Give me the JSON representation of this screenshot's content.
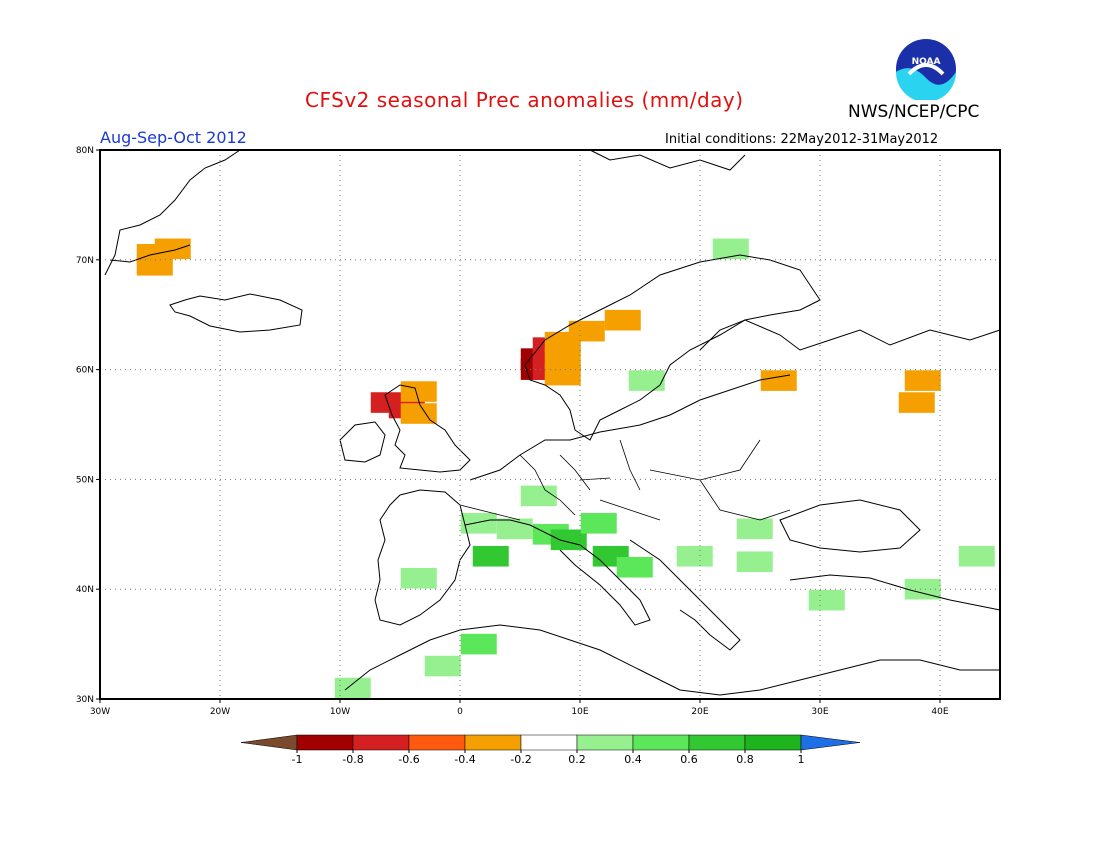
{
  "header": {
    "title": "CFSv2 seasonal Prec anomalies (mm/day)",
    "agency": "NWS/NCEP/CPC",
    "season": "Aug-Sep-Oct 2012",
    "initial_conditions": "Initial conditions: 22May2012-31May2012",
    "logo_text": "NOAA"
  },
  "map": {
    "lon_labels": [
      "30W",
      "20W",
      "10W",
      "0",
      "10E",
      "20E",
      "30E",
      "40E"
    ],
    "lat_labels": [
      "80N",
      "70N",
      "60N",
      "50N",
      "40N",
      "30N"
    ]
  },
  "colorbar": {
    "labels": [
      "-1",
      "-0.8",
      "-0.6",
      "-0.4",
      "-0.2",
      "0.2",
      "0.4",
      "0.6",
      "0.8",
      "1"
    ],
    "colors": [
      "#7a4a2c",
      "#a00000",
      "#d42020",
      "#ff5a10",
      "#f5a000",
      "#ffffff",
      "#96f090",
      "#5ce65a",
      "#32c832",
      "#1eb41e",
      "#1e6ee6"
    ]
  },
  "anomaly_cells": [
    {
      "v": "-0.4",
      "c": "#f5a000",
      "lon": -26,
      "lat": 70.5
    },
    {
      "v": "-0.4",
      "c": "#f5a000",
      "lon": -24.5,
      "lat": 71
    },
    {
      "v": "-0.4",
      "c": "#f5a000",
      "lon": -26,
      "lat": 69.5
    },
    {
      "v": "-0.8",
      "c": "#a00000",
      "lon": 6,
      "lat": 60
    },
    {
      "v": "-0.8",
      "c": "#a00000",
      "lon": 6,
      "lat": 61
    },
    {
      "v": "-0.6",
      "c": "#d42020",
      "lon": 7,
      "lat": 62
    },
    {
      "v": "-0.6",
      "c": "#d42020",
      "lon": 7,
      "lat": 61
    },
    {
      "v": "-0.6",
      "c": "#d42020",
      "lon": 7,
      "lat": 60
    },
    {
      "v": "-0.4",
      "c": "#f5a000",
      "lon": 8,
      "lat": 62.5
    },
    {
      "v": "-0.4",
      "c": "#f5a000",
      "lon": 8,
      "lat": 61
    },
    {
      "v": "-0.4",
      "c": "#f5a000",
      "lon": 8,
      "lat": 59.5
    },
    {
      "v": "-0.4",
      "c": "#f5a000",
      "lon": 10,
      "lat": 63.5
    },
    {
      "v": "-0.4",
      "c": "#f5a000",
      "lon": 13,
      "lat": 64.5
    },
    {
      "v": "-0.6",
      "c": "#d42020",
      "lon": -6.5,
      "lat": 57
    },
    {
      "v": "-0.6",
      "c": "#d42020",
      "lon": -5,
      "lat": 56.5
    },
    {
      "v": "-0.4",
      "c": "#f5a000",
      "lon": -4,
      "lat": 58
    },
    {
      "v": "-0.4",
      "c": "#f5a000",
      "lon": -4,
      "lat": 56
    },
    {
      "v": "-0.4",
      "c": "#f5a000",
      "lon": 26,
      "lat": 59
    },
    {
      "v": "-0.4",
      "c": "#f5a000",
      "lon": 37.5,
      "lat": 57
    },
    {
      "v": "-0.4",
      "c": "#f5a000",
      "lon": 38,
      "lat": 59
    },
    {
      "v": "0.2",
      "c": "#96f090",
      "lon": 6,
      "lat": 48.5
    },
    {
      "v": "0.2",
      "c": "#96f090",
      "lon": 1,
      "lat": 46
    },
    {
      "v": "0.2",
      "c": "#96f090",
      "lon": 4,
      "lat": 45.5
    },
    {
      "v": "0.4",
      "c": "#5ce65a",
      "lon": 7,
      "lat": 45
    },
    {
      "v": "0.6",
      "c": "#32c832",
      "lon": 8.5,
      "lat": 44.5
    },
    {
      "v": "0.4",
      "c": "#5ce65a",
      "lon": 11,
      "lat": 46
    },
    {
      "v": "0.6",
      "c": "#32c832",
      "lon": 12,
      "lat": 43
    },
    {
      "v": "0.4",
      "c": "#5ce65a",
      "lon": 14,
      "lat": 42
    },
    {
      "v": "0.2",
      "c": "#96f090",
      "lon": 19,
      "lat": 43
    },
    {
      "v": "0.2",
      "c": "#96f090",
      "lon": 24,
      "lat": 45.5
    },
    {
      "v": "0.2",
      "c": "#96f090",
      "lon": 24,
      "lat": 42.5
    },
    {
      "v": "0.6",
      "c": "#32c832",
      "lon": 2,
      "lat": 43
    },
    {
      "v": "0.4",
      "c": "#5ce65a",
      "lon": 1,
      "lat": 35
    },
    {
      "v": "0.2",
      "c": "#96f090",
      "lon": -4,
      "lat": 41
    },
    {
      "v": "0.2",
      "c": "#96f090",
      "lon": -2,
      "lat": 33
    },
    {
      "v": "0.2",
      "c": "#96f090",
      "lon": -9.5,
      "lat": 31
    },
    {
      "v": "0.2",
      "c": "#96f090",
      "lon": 30,
      "lat": 39
    },
    {
      "v": "0.2",
      "c": "#96f090",
      "lon": 38,
      "lat": 40
    },
    {
      "v": "0.2",
      "c": "#96f090",
      "lon": 42.5,
      "lat": 43
    },
    {
      "v": "0.2",
      "c": "#96f090",
      "lon": 22,
      "lat": 71
    },
    {
      "v": "0.2",
      "c": "#96f090",
      "lon": 15,
      "lat": 59
    }
  ]
}
